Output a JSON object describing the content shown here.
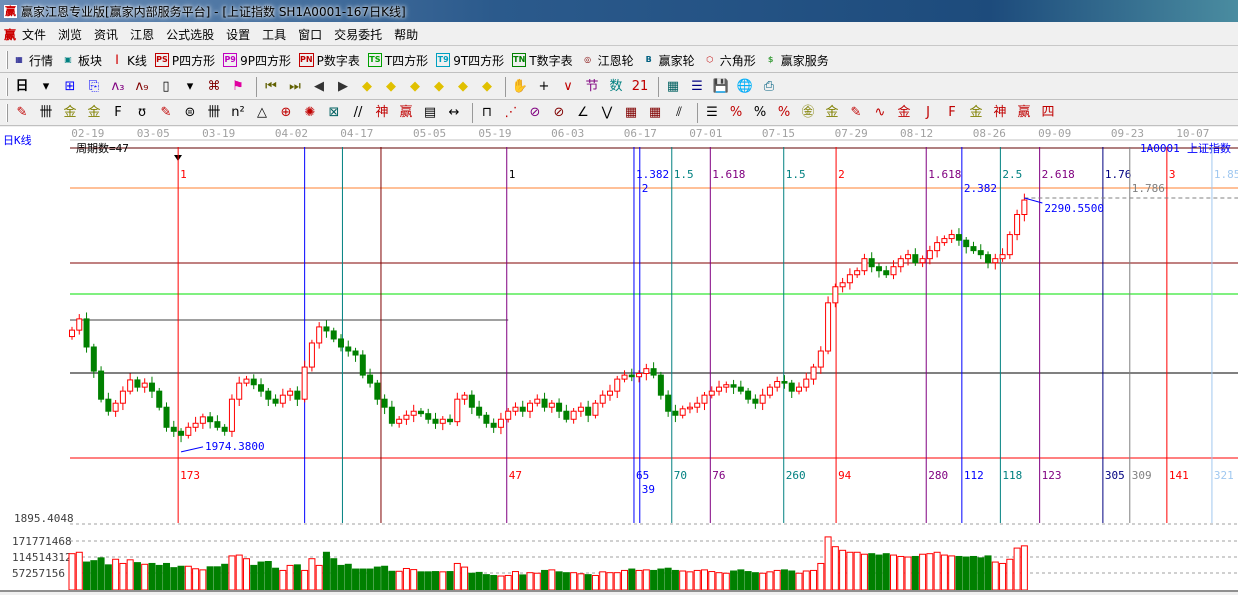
{
  "window": {
    "title": "赢家江恩专业版[赢家内部服务平台] - [上证指数  SH1A0001-167日K线]",
    "logo": "赢"
  },
  "menu": {
    "logo": "赢",
    "items": [
      "文件",
      "浏览",
      "资讯",
      "江恩",
      "公式选股",
      "设置",
      "工具",
      "窗口",
      "交易委托",
      "帮助"
    ]
  },
  "toolbar1": [
    {
      "icon": "table-icon",
      "glyph": "▦",
      "color": "#000080",
      "label": "行情"
    },
    {
      "icon": "blocks-icon",
      "glyph": "▣",
      "color": "#008080",
      "label": "板块"
    },
    {
      "icon": "kline-icon",
      "glyph": "┃",
      "color": "#d00000",
      "label": "K线"
    },
    {
      "icon": "ps-icon",
      "glyph": "PS",
      "color": "#c00000",
      "label": "P四方形"
    },
    {
      "icon": "p9-icon",
      "glyph": "P9",
      "color": "#c000c0",
      "label": "9P四方形"
    },
    {
      "icon": "pn-icon",
      "glyph": "PN",
      "color": "#c00000",
      "label": "P数字表"
    },
    {
      "icon": "ts-icon",
      "glyph": "TS",
      "color": "#00a000",
      "label": "T四方形"
    },
    {
      "icon": "t9-icon",
      "glyph": "T9",
      "color": "#00a0c0",
      "label": "9T四方形"
    },
    {
      "icon": "tn-icon",
      "glyph": "TN",
      "color": "#008000",
      "label": "T数字表"
    },
    {
      "icon": "gann-wheel-icon",
      "glyph": "◎",
      "color": "#800000",
      "label": "江恩轮"
    },
    {
      "icon": "big-wheel-icon",
      "glyph": "B",
      "color": "#006080",
      "label": "赢家轮"
    },
    {
      "icon": "hexagon-icon",
      "glyph": "⬡",
      "color": "#c00000",
      "label": "六角形"
    },
    {
      "icon": "dollar-icon",
      "glyph": "$",
      "color": "#40a040",
      "label": "赢家服务"
    }
  ],
  "toolbar2": {
    "period": "日",
    "icons": [
      {
        "name": "chevron-down-icon",
        "glyph": "▾",
        "color": "#000"
      },
      {
        "name": "chart-select-icon",
        "glyph": "⊞",
        "color": "#0000ff"
      },
      {
        "name": "clipboard-icon",
        "glyph": "⎘",
        "color": "#0000ff"
      },
      {
        "name": "wave3-icon",
        "glyph": "ʌ₃",
        "color": "#800080"
      },
      {
        "name": "wave9-icon",
        "glyph": "ʌ₉",
        "color": "#800000"
      },
      {
        "name": "candle-type-icon",
        "glyph": "▯",
        "color": "#000"
      },
      {
        "name": "chevron-down-icon",
        "glyph": "▾",
        "color": "#000"
      },
      {
        "name": "pattern-icon",
        "glyph": "⌘",
        "color": "#800000"
      },
      {
        "name": "flag-icon",
        "glyph": "⚑",
        "color": "#e000a0"
      },
      {
        "name": "first-icon",
        "glyph": "⏮",
        "color": "#606000"
      },
      {
        "name": "last-icon",
        "glyph": "⏭",
        "color": "#606000"
      },
      {
        "name": "prev-icon",
        "glyph": "◀",
        "color": "#333"
      },
      {
        "name": "next-icon",
        "glyph": "▶",
        "color": "#333"
      },
      {
        "name": "left-diamond-icon",
        "glyph": "◆",
        "color": "#e0c000"
      },
      {
        "name": "down-diamond-icon",
        "glyph": "◆",
        "color": "#e0c000"
      },
      {
        "name": "h-expand-icon",
        "glyph": "◆",
        "color": "#e0c000"
      },
      {
        "name": "zoom-in-icon",
        "glyph": "◆",
        "color": "#e0c000"
      },
      {
        "name": "zoom-out-icon",
        "glyph": "◆",
        "color": "#e0c000"
      },
      {
        "name": "v-expand-icon",
        "glyph": "◆",
        "color": "#e0c000"
      },
      {
        "name": "hand-icon",
        "glyph": "✋",
        "color": "#000"
      },
      {
        "name": "crosshair-icon",
        "glyph": "+",
        "color": "#000"
      },
      {
        "name": "line-point-icon",
        "glyph": "∨",
        "color": "#c00000"
      },
      {
        "name": "node-icon",
        "glyph": "节",
        "color": "#800080"
      },
      {
        "name": "number-icon",
        "glyph": "数",
        "color": "#008080"
      },
      {
        "name": "calendar-icon",
        "glyph": "21",
        "color": "#c00000"
      },
      {
        "name": "calculator-icon",
        "glyph": "▦",
        "color": "#006060"
      },
      {
        "name": "notes-icon",
        "glyph": "☰",
        "color": "#000080"
      },
      {
        "name": "save-icon",
        "glyph": "💾",
        "color": "#c00000"
      },
      {
        "name": "network-icon",
        "glyph": "🌐",
        "color": "#0060c0"
      },
      {
        "name": "print-icon",
        "glyph": "⎙",
        "color": "#006080"
      }
    ]
  },
  "toolbar3": [
    {
      "name": "pen-icon",
      "glyph": "✎",
      "color": "#c00000"
    },
    {
      "name": "lines-icon",
      "glyph": "卌",
      "color": "#000"
    },
    {
      "name": "gold-lines-icon",
      "glyph": "金",
      "color": "#808000"
    },
    {
      "name": "gold-lines2-icon",
      "glyph": "金",
      "color": "#808000"
    },
    {
      "name": "f-lines-icon",
      "glyph": "F",
      "color": "#000"
    },
    {
      "name": "spiral-icon",
      "glyph": "ʊ",
      "color": "#000"
    },
    {
      "name": "pen-lines-icon",
      "glyph": "✎",
      "color": "#c00000"
    },
    {
      "name": "circle-lines-icon",
      "glyph": "⊜",
      "color": "#000"
    },
    {
      "name": "parallel-icon",
      "glyph": "卌",
      "color": "#000"
    },
    {
      "name": "n2-icon",
      "glyph": "n²",
      "color": "#000"
    },
    {
      "name": "triangle-icon",
      "glyph": "△",
      "color": "#000"
    },
    {
      "name": "target-icon",
      "glyph": "⊕",
      "color": "#c00000"
    },
    {
      "name": "radial-icon",
      "glyph": "✺",
      "color": "#c00000"
    },
    {
      "name": "square-radial-icon",
      "glyph": "⊠",
      "color": "#006060"
    },
    {
      "name": "slant-icon",
      "glyph": "//",
      "color": "#000"
    },
    {
      "name": "shen-icon",
      "glyph": "神",
      "color": "#c00000"
    },
    {
      "name": "ying-icon",
      "glyph": "赢",
      "color": "#c00000"
    },
    {
      "name": "ruler-icon",
      "glyph": "▤",
      "color": "#000"
    },
    {
      "name": "measure-icon",
      "glyph": "↔",
      "color": "#000"
    },
    {
      "name": "box-icon",
      "glyph": "⊓",
      "color": "#000"
    },
    {
      "name": "fan-icon",
      "glyph": "⋰",
      "color": "#c00000"
    },
    {
      "name": "box-fan-icon",
      "glyph": "⊘",
      "color": "#800080"
    },
    {
      "name": "box-fan2-icon",
      "glyph": "⊘",
      "color": "#800000"
    },
    {
      "name": "angle-icon",
      "glyph": "∠",
      "color": "#000"
    },
    {
      "name": "zigzag-icon",
      "glyph": "⋁",
      "color": "#000"
    },
    {
      "name": "grid-icon",
      "glyph": "▦",
      "color": "#800000"
    },
    {
      "name": "grid2-icon",
      "glyph": "▦",
      "color": "#800000"
    },
    {
      "name": "hatch-icon",
      "glyph": "⫽",
      "color": "#000"
    },
    {
      "name": "ticks-icon",
      "glyph": "☰",
      "color": "#000"
    },
    {
      "name": "percent-slant-icon",
      "glyph": "%",
      "color": "#c00000"
    },
    {
      "name": "percent-icon",
      "glyph": "%",
      "color": "#000"
    },
    {
      "name": "percent-lines-icon",
      "glyph": "%",
      "color": "#c00000"
    },
    {
      "name": "gold-circle-icon",
      "glyph": "㊎",
      "color": "#808000"
    },
    {
      "name": "gold-levels-icon",
      "glyph": "金",
      "color": "#808000"
    },
    {
      "name": "pen-level-icon",
      "glyph": "✎",
      "color": "#c00000"
    },
    {
      "name": "wave-icon",
      "glyph": "∿",
      "color": "#c00000"
    },
    {
      "name": "gold-red-icon",
      "glyph": "金",
      "color": "#c00000"
    },
    {
      "name": "j-fan-icon",
      "glyph": "J",
      "color": "#c00000"
    },
    {
      "name": "f-fan-icon",
      "glyph": "F",
      "color": "#c00000"
    },
    {
      "name": "gold-fan-icon",
      "glyph": "金",
      "color": "#808000"
    },
    {
      "name": "shen-fan-icon",
      "glyph": "神",
      "color": "#c00000"
    },
    {
      "name": "ying-fan-icon",
      "glyph": "赢",
      "color": "#c00000"
    },
    {
      "name": "four-fan-icon",
      "glyph": "四",
      "color": "#c00000"
    }
  ],
  "chart": {
    "period_label": "日K线",
    "cycle_label": "周期数=47",
    "symbol": "1A0001",
    "name": "上证指数",
    "dates": [
      "02-19",
      "03-05",
      "03-19",
      "04-02",
      "04-17",
      "05-05",
      "05-19",
      "06-03",
      "06-17",
      "07-01",
      "07-15",
      "07-29",
      "08-12",
      "08-26",
      "09-09",
      "09-23",
      "10-07"
    ],
    "date_bar_index": [
      1,
      10,
      19,
      29,
      38,
      48,
      57,
      67,
      77,
      86,
      96,
      106,
      115,
      125,
      134,
      144,
      153
    ],
    "high_label": "2290.5500",
    "high_price": 2290.55,
    "low_label": "1974.3800",
    "low_price": 1974.38,
    "closes": [
      2126,
      2140,
      2105,
      2075,
      2040,
      2025,
      2035,
      2050,
      2064,
      2055,
      2060,
      2050,
      2030,
      2005,
      2000,
      1995,
      2005,
      2010,
      2018,
      2012,
      2005,
      2000,
      2040,
      2060,
      2065,
      2058,
      2050,
      2040,
      2035,
      2045,
      2050,
      2040,
      2080,
      2110,
      2130,
      2125,
      2115,
      2105,
      2100,
      2095,
      2070,
      2060,
      2040,
      2030,
      2010,
      2015,
      2020,
      2025,
      2022,
      2015,
      2010,
      2015,
      2012,
      2040,
      2045,
      2030,
      2020,
      2010,
      2005,
      2015,
      2025,
      2030,
      2025,
      2035,
      2040,
      2030,
      2035,
      2025,
      2015,
      2025,
      2030,
      2020,
      2035,
      2045,
      2050,
      2065,
      2070,
      2068,
      2072,
      2078,
      2070,
      2045,
      2025,
      2020,
      2028,
      2030,
      2035,
      2045,
      2050,
      2055,
      2058,
      2055,
      2050,
      2040,
      2035,
      2045,
      2055,
      2062,
      2060,
      2050,
      2055,
      2065,
      2080,
      2100,
      2160,
      2180,
      2185,
      2195,
      2200,
      2215,
      2205,
      2200,
      2195,
      2205,
      2215,
      2220,
      2210,
      2215,
      2225,
      2235,
      2240,
      2245,
      2238,
      2230,
      2225,
      2220,
      2210,
      2215,
      2220,
      2245,
      2270,
      2288
    ],
    "volumes": [
      130000000.0,
      135000000.0,
      100000000.0,
      105000000.0,
      115000000.0,
      90000000.0,
      110000000.0,
      95000000.0,
      108000000.0,
      98000000.0,
      92000000.0,
      95000000.0,
      88000000.0,
      95000000.0,
      80000000.0,
      85000000.0,
      85000000.0,
      76000000.0,
      72000000.0,
      83000000.0,
      83000000.0,
      92000000.0,
      122000000.0,
      125000000.0,
      112000000.0,
      88000000.0,
      100000000.0,
      102000000.0,
      78000000.0,
      70000000.0,
      88000000.0,
      90000000.0,
      70000000.0,
      112000000.0,
      88000000.0,
      135000000.0,
      112000000.0,
      88000000.0,
      92000000.0,
      75000000.0,
      75000000.0,
      75000000.0,
      82000000.0,
      85000000.0,
      67000000.0,
      67000000.0,
      77000000.0,
      73000000.0,
      65000000.0,
      65000000.0,
      66000000.0,
      65000000.0,
      66000000.0,
      95000000.0,
      82000000.0,
      60000000.0,
      63000000.0,
      55000000.0,
      52000000.0,
      50000000.0,
      52000000.0,
      66000000.0,
      54000000.0,
      62000000.0,
      60000000.0,
      70000000.0,
      72000000.0,
      65000000.0,
      62000000.0,
      62000000.0,
      58000000.0,
      55000000.0,
      52000000.0,
      65000000.0,
      62000000.0,
      62000000.0,
      70000000.0,
      75000000.0,
      70000000.0,
      72000000.0,
      70000000.0,
      75000000.0,
      78000000.0,
      70000000.0,
      68000000.0,
      65000000.0,
      70000000.0,
      72000000.0,
      66000000.0,
      62000000.0,
      60000000.0,
      68000000.0,
      72000000.0,
      66000000.0,
      62000000.0,
      60000000.0,
      65000000.0,
      70000000.0,
      72000000.0,
      68000000.0,
      60000000.0,
      68000000.0,
      70000000.0,
      95000000.0,
      190000000.0,
      155000000.0,
      142000000.0,
      135000000.0,
      135000000.0,
      128000000.0,
      130000000.0,
      125000000.0,
      130000000.0,
      125000000.0,
      120000000.0,
      118000000.0,
      120000000.0,
      128000000.0,
      130000000.0,
      135000000.0,
      125000000.0,
      122000000.0,
      120000000.0,
      118000000.0,
      120000000.0,
      115000000.0,
      122000000.0,
      100000000.0,
      95000000.0,
      110000000.0,
      150000000.0,
      158000000.0
    ],
    "volume_axis": [
      "171771468",
      "114514312",
      "57257156"
    ],
    "volume_ticks": [
      171771468,
      114514312,
      57257156
    ],
    "price_axis_label": "1895.4048",
    "h_levels": [
      {
        "price": 2303,
        "color": "#ff8030"
      },
      {
        "price": 2209.6,
        "color": "#800000"
      },
      {
        "price": 2171,
        "color": "#00e000"
      },
      {
        "price": 2072.6,
        "color": "#000000"
      },
      {
        "price": 1966.8,
        "color": "#ff0000"
      }
    ],
    "partial_level": {
      "price": 2138.6,
      "color": "#404040",
      "to_bar": 60
    },
    "v_lines": [
      {
        "bar": 14.6,
        "color": "#ff0000",
        "top": "1",
        "bottom": "173"
      },
      {
        "bar": 32,
        "color": "#0000ff",
        "top": "",
        "bottom": ""
      },
      {
        "bar": 37.2,
        "color": "#008080",
        "top": "",
        "bottom": ""
      },
      {
        "bar": 42.5,
        "color": "#800000",
        "top": "",
        "bottom": ""
      },
      {
        "bar": 59.8,
        "color": "#800080",
        "top": "1",
        "bottom": "47",
        "topColor": "#000",
        "bottomColor": "#ff0000"
      },
      {
        "bar": 77.3,
        "color": "#0000ff",
        "top": "1.382",
        "bottom": "65",
        "topColor": "#0000ff",
        "bottomColor": "#0000ff"
      },
      {
        "bar": 78.1,
        "color": "#0000ff",
        "top": "2",
        "bottom": "39",
        "topColor": "#0000ff",
        "bottomColor": "#0000ff"
      },
      {
        "bar": 82.5,
        "color": "#008080",
        "top": "1.5",
        "bottom": "70"
      },
      {
        "bar": 87.8,
        "color": "#800080",
        "top": "1.618",
        "bottom": "76"
      },
      {
        "bar": 97.9,
        "color": "#008080",
        "top": "1.5",
        "bottom": "260"
      },
      {
        "bar": 105.1,
        "color": "#ff0000",
        "top": "2",
        "bottom": "94"
      },
      {
        "bar": 117.5,
        "color": "#800080",
        "top": "1.618",
        "bottom": "280"
      },
      {
        "bar": 122.4,
        "color": "#0000ff",
        "top": "2.382",
        "bottom": "112"
      },
      {
        "bar": 127.7,
        "color": "#008080",
        "top": "2.5",
        "bottom": "118"
      },
      {
        "bar": 133.1,
        "color": "#800080",
        "top": "2.618",
        "bottom": "123"
      },
      {
        "bar": 141.8,
        "color": "#000080",
        "top": "1.76",
        "bottom": "305"
      },
      {
        "bar": 145.5,
        "color": "#808080",
        "top": "1.786",
        "bottom": "309"
      },
      {
        "bar": 150.6,
        "color": "#ff0000",
        "top": "3",
        "bottom": "141"
      },
      {
        "bar": 156.8,
        "color": "#a0c8f0",
        "top": "1.85",
        "bottom": "321"
      }
    ],
    "colors": {
      "up": "#ff0000",
      "down": "#008000",
      "highlight": "#0000ff"
    }
  }
}
